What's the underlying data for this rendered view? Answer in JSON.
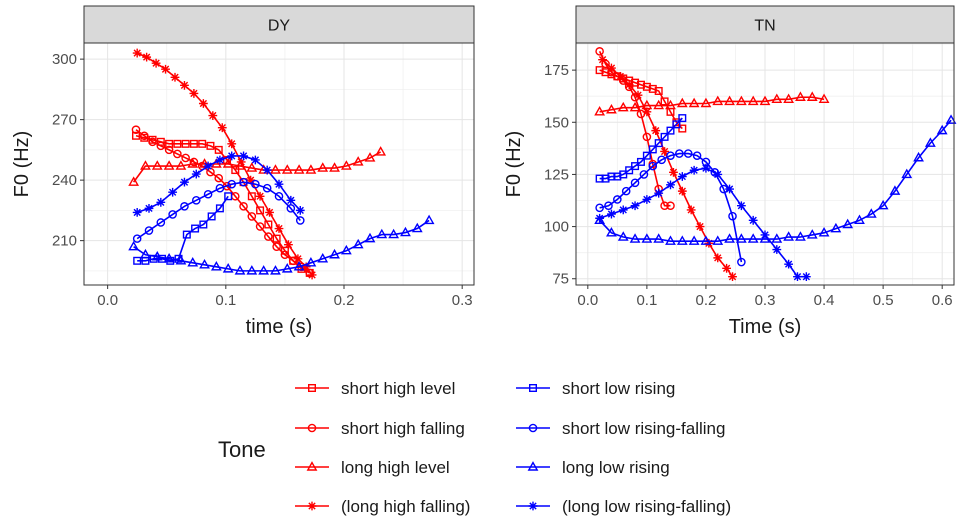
{
  "chart_data": [
    {
      "type": "line",
      "panel": "DY",
      "xlabel": "time (s)",
      "ylabel": "F0 (Hz)",
      "xlim": [
        -0.02,
        0.31
      ],
      "ylim": [
        188,
        308
      ],
      "xticks": [
        0.0,
        0.1,
        0.2,
        0.3
      ],
      "xtick_labels": [
        "0.0",
        "0.1",
        "0.2",
        "0.3"
      ],
      "yticks": [
        210,
        240,
        270,
        300
      ],
      "ytick_labels": [
        "210",
        "240",
        "270",
        "300"
      ],
      "grid": true,
      "series": [
        {
          "name": "short high level",
          "color": "#ff0000",
          "marker": "square",
          "x": [
            0.024,
            0.031,
            0.038,
            0.045,
            0.052,
            0.059,
            0.066,
            0.073,
            0.08,
            0.087,
            0.094,
            0.101,
            0.108,
            0.115,
            0.122,
            0.129,
            0.136,
            0.143,
            0.15,
            0.157,
            0.164,
            0.171
          ],
          "y": [
            262,
            261,
            260,
            259,
            258,
            258,
            258,
            258,
            258,
            257,
            255,
            250,
            245,
            239,
            232,
            225,
            218,
            211,
            205,
            200,
            196,
            194
          ]
        },
        {
          "name": "short high falling",
          "color": "#ff0000",
          "marker": "circle",
          "x": [
            0.024,
            0.031,
            0.038,
            0.045,
            0.052,
            0.059,
            0.066,
            0.073,
            0.08,
            0.087,
            0.094,
            0.101,
            0.108,
            0.115,
            0.122,
            0.129,
            0.136,
            0.143,
            0.15,
            0.157,
            0.164,
            0.171
          ],
          "y": [
            265,
            262,
            259,
            257,
            255,
            253,
            251,
            249,
            247,
            244,
            241,
            237,
            232,
            227,
            222,
            217,
            212,
            207,
            203,
            200,
            197,
            194
          ]
        },
        {
          "name": "long high level",
          "color": "#ff0000",
          "marker": "triangle",
          "x": [
            0.022,
            0.032,
            0.042,
            0.052,
            0.062,
            0.072,
            0.082,
            0.092,
            0.102,
            0.112,
            0.122,
            0.132,
            0.142,
            0.152,
            0.162,
            0.172,
            0.182,
            0.192,
            0.202,
            0.212,
            0.222,
            0.231
          ],
          "y": [
            239,
            247,
            247,
            247,
            247,
            248,
            248,
            248,
            248,
            247,
            246,
            245,
            245,
            245,
            245,
            245,
            246,
            246,
            247,
            249,
            251,
            254
          ]
        },
        {
          "name": "(long high falling)",
          "color": "#ff0000",
          "marker": "star",
          "x": [
            0.025,
            0.033,
            0.041,
            0.049,
            0.057,
            0.065,
            0.073,
            0.081,
            0.089,
            0.097,
            0.105,
            0.113,
            0.121,
            0.129,
            0.137,
            0.145,
            0.153,
            0.161,
            0.168,
            0.173
          ],
          "y": [
            303,
            301,
            298,
            295,
            291,
            287,
            283,
            278,
            272,
            266,
            258,
            249,
            240,
            232,
            224,
            216,
            208,
            201,
            197,
            193
          ]
        },
        {
          "name": "short low rising",
          "color": "#0000ff",
          "marker": "square",
          "x": [
            0.025,
            0.032,
            0.039,
            0.046,
            0.053,
            0.06,
            0.067,
            0.074,
            0.081,
            0.088,
            0.095,
            0.102
          ],
          "y": [
            200,
            200,
            201,
            201,
            200,
            201,
            213,
            216,
            218,
            222,
            226,
            232
          ]
        },
        {
          "name": "short low rising-falling",
          "color": "#0000ff",
          "marker": "circle",
          "x": [
            0.025,
            0.035,
            0.045,
            0.055,
            0.065,
            0.075,
            0.085,
            0.095,
            0.105,
            0.115,
            0.125,
            0.135,
            0.145,
            0.155,
            0.163
          ],
          "y": [
            211,
            215,
            219,
            223,
            227,
            230,
            233,
            236,
            238,
            239,
            238,
            236,
            232,
            226,
            220
          ]
        },
        {
          "name": "long low rising",
          "color": "#0000ff",
          "marker": "triangle",
          "x": [
            0.022,
            0.032,
            0.042,
            0.052,
            0.062,
            0.072,
            0.082,
            0.092,
            0.102,
            0.112,
            0.122,
            0.132,
            0.142,
            0.152,
            0.162,
            0.172,
            0.182,
            0.192,
            0.202,
            0.212,
            0.222,
            0.232,
            0.242,
            0.252,
            0.262,
            0.272
          ],
          "y": [
            207,
            203,
            202,
            201,
            200,
            199,
            198,
            197,
            196,
            195,
            195,
            195,
            195,
            196,
            197,
            199,
            201,
            203,
            205,
            208,
            211,
            213,
            213,
            214,
            216,
            220
          ]
        },
        {
          "name": "(long low rising-falling)",
          "color": "#0000ff",
          "marker": "star",
          "x": [
            0.025,
            0.035,
            0.045,
            0.055,
            0.065,
            0.075,
            0.085,
            0.095,
            0.105,
            0.115,
            0.125,
            0.135,
            0.145,
            0.155,
            0.163
          ],
          "y": [
            224,
            226,
            229,
            234,
            239,
            243,
            247,
            250,
            252,
            252,
            250,
            245,
            238,
            230,
            225
          ]
        }
      ]
    },
    {
      "type": "line",
      "panel": "TN",
      "xlabel": "Time (s)",
      "ylabel": "F0 (Hz)",
      "xlim": [
        -0.02,
        0.62
      ],
      "ylim": [
        72,
        188
      ],
      "xticks": [
        0.0,
        0.1,
        0.2,
        0.3,
        0.4,
        0.5,
        0.6
      ],
      "xtick_labels": [
        "0.0",
        "0.1",
        "0.2",
        "0.3",
        "0.4",
        "0.5",
        "0.6"
      ],
      "yticks": [
        75,
        100,
        125,
        150,
        175
      ],
      "ytick_labels": [
        "75",
        "100",
        "125",
        "150",
        "175"
      ],
      "grid": true,
      "series": [
        {
          "name": "short high level",
          "color": "#ff0000",
          "marker": "square",
          "x": [
            0.02,
            0.03,
            0.04,
            0.05,
            0.06,
            0.07,
            0.08,
            0.09,
            0.1,
            0.11,
            0.12,
            0.13,
            0.14,
            0.15,
            0.16
          ],
          "y": [
            175,
            174,
            173,
            172,
            171,
            170,
            169,
            168,
            167,
            166,
            165,
            160,
            155,
            150,
            147
          ]
        },
        {
          "name": "short high falling",
          "color": "#ff0000",
          "marker": "circle",
          "x": [
            0.02,
            0.03,
            0.04,
            0.05,
            0.06,
            0.07,
            0.08,
            0.09,
            0.1,
            0.11,
            0.12,
            0.13,
            0.14
          ],
          "y": [
            184,
            178,
            174,
            172,
            170,
            167,
            162,
            154,
            143,
            130,
            118,
            110,
            110
          ]
        },
        {
          "name": "long high level",
          "color": "#ff0000",
          "marker": "triangle",
          "x": [
            0.02,
            0.04,
            0.06,
            0.08,
            0.1,
            0.12,
            0.14,
            0.16,
            0.18,
            0.2,
            0.22,
            0.24,
            0.26,
            0.28,
            0.3,
            0.32,
            0.34,
            0.36,
            0.38,
            0.4
          ],
          "y": [
            155,
            156,
            157,
            157,
            158,
            158,
            158,
            159,
            159,
            159,
            160,
            160,
            160,
            160,
            160,
            161,
            161,
            162,
            162,
            161
          ]
        },
        {
          "name": "(long high falling)",
          "color": "#ff0000",
          "marker": "star",
          "x": [
            0.025,
            0.04,
            0.055,
            0.07,
            0.085,
            0.1,
            0.115,
            0.13,
            0.145,
            0.16,
            0.175,
            0.19,
            0.205,
            0.22,
            0.235,
            0.245
          ],
          "y": [
            180,
            176,
            172,
            168,
            163,
            155,
            146,
            136,
            126,
            117,
            108,
            100,
            92,
            85,
            80,
            76
          ]
        },
        {
          "name": "short low rising",
          "color": "#0000ff",
          "marker": "square",
          "x": [
            0.02,
            0.03,
            0.04,
            0.05,
            0.06,
            0.07,
            0.08,
            0.09,
            0.1,
            0.11,
            0.12,
            0.13,
            0.14,
            0.15,
            0.16
          ],
          "y": [
            123,
            123,
            124,
            124,
            125,
            127,
            129,
            131,
            134,
            137,
            140,
            143,
            146,
            149,
            152
          ]
        },
        {
          "name": "short low rising-falling",
          "color": "#0000ff",
          "marker": "circle",
          "x": [
            0.02,
            0.035,
            0.05,
            0.065,
            0.08,
            0.095,
            0.11,
            0.125,
            0.14,
            0.155,
            0.17,
            0.185,
            0.2,
            0.215,
            0.23,
            0.245,
            0.26
          ],
          "y": [
            109,
            110,
            113,
            117,
            121,
            125,
            129,
            132,
            134,
            135,
            135,
            134,
            131,
            126,
            118,
            105,
            83
          ]
        },
        {
          "name": "long low rising",
          "color": "#0000ff",
          "marker": "triangle",
          "x": [
            0.02,
            0.04,
            0.06,
            0.08,
            0.1,
            0.12,
            0.14,
            0.16,
            0.18,
            0.2,
            0.22,
            0.24,
            0.26,
            0.28,
            0.3,
            0.32,
            0.34,
            0.36,
            0.38,
            0.4,
            0.42,
            0.44,
            0.46,
            0.48,
            0.5,
            0.52,
            0.54,
            0.56,
            0.58,
            0.6,
            0.615
          ],
          "y": [
            103,
            97,
            95,
            94,
            94,
            94,
            93,
            93,
            93,
            93,
            93,
            94,
            94,
            94,
            94,
            94,
            95,
            95,
            96,
            97,
            99,
            101,
            103,
            106,
            110,
            117,
            125,
            133,
            140,
            146,
            151
          ]
        },
        {
          "name": "(long low rising-falling)",
          "color": "#0000ff",
          "marker": "star",
          "x": [
            0.02,
            0.04,
            0.06,
            0.08,
            0.1,
            0.12,
            0.14,
            0.16,
            0.18,
            0.2,
            0.22,
            0.24,
            0.26,
            0.28,
            0.3,
            0.32,
            0.34,
            0.355,
            0.37
          ],
          "y": [
            104,
            106,
            108,
            110,
            113,
            116,
            120,
            124,
            127,
            128,
            125,
            118,
            110,
            103,
            96,
            89,
            82,
            76,
            76
          ]
        }
      ]
    }
  ],
  "legend": {
    "title": "Tone",
    "items": [
      {
        "label": "short high level",
        "color": "#ff0000",
        "marker": "square"
      },
      {
        "label": "short high falling",
        "color": "#ff0000",
        "marker": "circle"
      },
      {
        "label": "long high level",
        "color": "#ff0000",
        "marker": "triangle"
      },
      {
        "label": "(long high falling)",
        "color": "#ff0000",
        "marker": "star"
      },
      {
        "label": "short low rising",
        "color": "#0000ff",
        "marker": "square"
      },
      {
        "label": "short low rising-falling",
        "color": "#0000ff",
        "marker": "circle"
      },
      {
        "label": "long low rising",
        "color": "#0000ff",
        "marker": "triangle"
      },
      {
        "label": "(long low rising-falling)",
        "color": "#0000ff",
        "marker": "star"
      }
    ]
  }
}
